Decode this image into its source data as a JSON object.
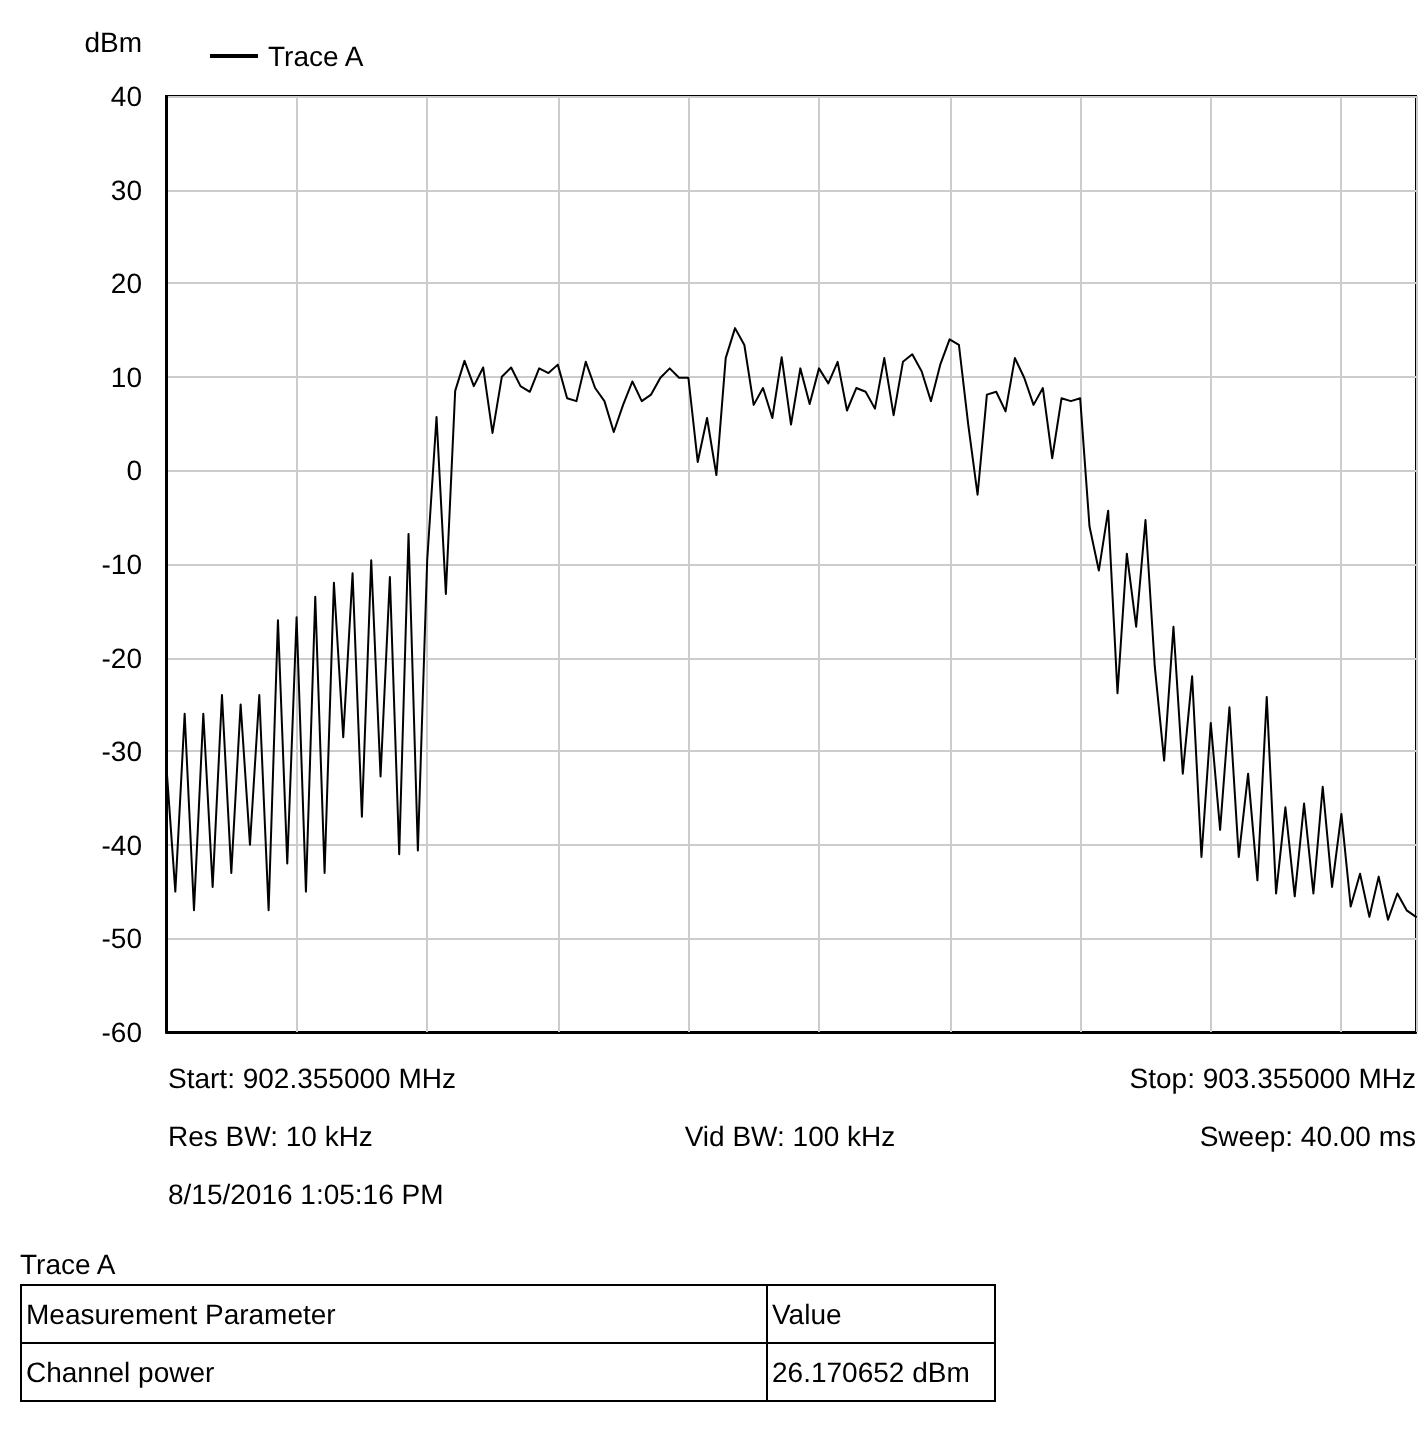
{
  "chart_data": {
    "type": "line",
    "ylabel": "dBm",
    "legend": "top left",
    "grid": true,
    "tick_labels": "y",
    "line_style": "solid",
    "ylim": [
      -60,
      40
    ],
    "yticks": [
      -60,
      -50,
      -40,
      -30,
      -20,
      -10,
      0,
      10,
      20,
      30,
      40
    ],
    "categories": [
      null,
      null,
      null,
      null,
      null,
      null,
      null,
      null,
      null,
      null,
      null,
      null,
      null,
      null,
      null,
      null,
      null,
      null,
      null,
      null,
      null,
      null,
      null,
      null,
      null,
      null,
      null,
      null,
      null,
      null,
      null,
      null,
      null,
      null,
      null,
      null,
      null,
      null,
      null,
      null,
      null,
      null,
      null,
      null,
      null,
      null,
      null,
      null,
      null,
      null,
      null,
      null,
      null,
      null,
      null,
      null,
      null,
      null,
      null,
      null,
      null,
      null,
      null,
      null,
      null,
      null,
      null,
      null,
      null,
      null,
      null,
      null,
      null,
      null,
      null,
      null,
      null,
      null,
      null,
      null,
      null,
      null,
      null,
      null,
      null,
      null,
      null,
      null,
      null,
      null,
      null,
      null,
      null,
      null,
      null,
      null,
      null,
      null,
      null,
      null,
      null,
      null,
      null,
      null,
      null,
      null,
      null,
      null,
      null,
      null,
      null,
      null,
      null,
      null,
      null,
      null,
      null,
      null,
      null,
      null,
      null,
      null,
      null,
      null,
      null,
      null,
      null,
      null,
      null,
      null,
      null,
      null,
      null,
      null,
      null
    ],
    "series": [
      {
        "name": "Trace A",
        "color": "#000000",
        "values": [
          -31,
          -45,
          -26,
          -47,
          -26,
          -44.5,
          -24,
          -43,
          -25,
          -40,
          -24,
          -47,
          -16,
          -42,
          -15.7,
          -45,
          -13.5,
          -43,
          -12,
          -28.5,
          -11,
          -37,
          -9.6,
          -32.7,
          -11.4,
          -41,
          -6.8,
          -40.6,
          -9.6,
          5.7,
          -13.2,
          8.5,
          11.7,
          9,
          11,
          4,
          10,
          11,
          9,
          8.4,
          10.9,
          10.4,
          11.3,
          7.7,
          7.4,
          11.6,
          8.8,
          7.4,
          4.1,
          7,
          9.5,
          7.4,
          8.1,
          9.9,
          10.9,
          9.9,
          9.9,
          0.9,
          5.6,
          -0.5,
          12,
          15.2,
          13.4,
          7,
          8.8,
          5.6,
          12.1,
          4.9,
          10.9,
          7.1,
          10.9,
          9.3,
          11.6,
          6.4,
          8.8,
          8.4,
          6.6,
          12,
          5.9,
          11.6,
          12.4,
          10.6,
          7.4,
          11.3,
          14,
          13.4,
          4.9,
          -2.6,
          8.1,
          8.4,
          6.3,
          12,
          9.9,
          7,
          8.8,
          1.3,
          7.7,
          7.4,
          7.7,
          -6,
          -10.7,
          -4.3,
          -23.8,
          -8.9,
          -16.7,
          -5.3,
          -21,
          -31,
          -16.7,
          -32.4,
          -22,
          -41.3,
          -27,
          -38.4,
          -25.3,
          -41.3,
          -32.4,
          -43.8,
          -24.2,
          -45.2,
          -36,
          -45.5,
          -35.6,
          -45.2,
          -33.8,
          -44.5,
          -36.7,
          -46.6,
          -43.1,
          -47.7,
          -43.4,
          -48,
          -45.2,
          -47,
          -47.7
        ]
      }
    ],
    "annotations": [
      "Start: 902.355000 MHz",
      "Stop: 903.355000 MHz",
      "Res BW: 10 kHz",
      "Vid BW: 100 kHz",
      "Sweep: 40.00 ms",
      "8/15/2016 1:05:16 PM",
      "Trace A",
      "Measurement Parameter",
      "Value",
      "Channel power",
      "26.170652 dBm"
    ]
  }
}
